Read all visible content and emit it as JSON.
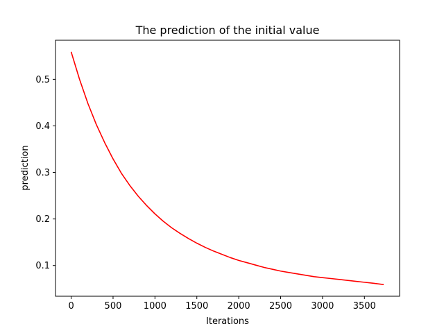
{
  "chart_data": {
    "type": "line",
    "title": "The prediction of the initial value",
    "xlabel": "Iterations",
    "ylabel": "prediction",
    "xlim": [
      -187,
      3920
    ],
    "ylim": [
      0.034,
      0.584
    ],
    "xticks": [
      0,
      500,
      1000,
      1500,
      2000,
      2500,
      3000,
      3500
    ],
    "yticks": [
      0.1,
      0.2,
      0.3,
      0.4,
      0.5
    ],
    "grid": false,
    "legend": "none",
    "series": [
      {
        "color": "#ff0000",
        "x": [
          0,
          100,
          200,
          300,
          400,
          500,
          600,
          700,
          800,
          900,
          1000,
          1100,
          1200,
          1300,
          1400,
          1500,
          1600,
          1700,
          1800,
          1900,
          2000,
          2100,
          2200,
          2300,
          2400,
          2500,
          2600,
          2700,
          2800,
          2900,
          3000,
          3100,
          3200,
          3300,
          3400,
          3500,
          3600,
          3730
        ],
        "y": [
          0.559,
          0.5,
          0.448,
          0.403,
          0.364,
          0.329,
          0.298,
          0.272,
          0.249,
          0.229,
          0.211,
          0.195,
          0.181,
          0.169,
          0.158,
          0.148,
          0.139,
          0.131,
          0.124,
          0.117,
          0.111,
          0.106,
          0.101,
          0.096,
          0.092,
          0.088,
          0.085,
          0.082,
          0.079,
          0.076,
          0.074,
          0.072,
          0.07,
          0.068,
          0.066,
          0.064,
          0.062,
          0.059
        ]
      }
    ]
  }
}
